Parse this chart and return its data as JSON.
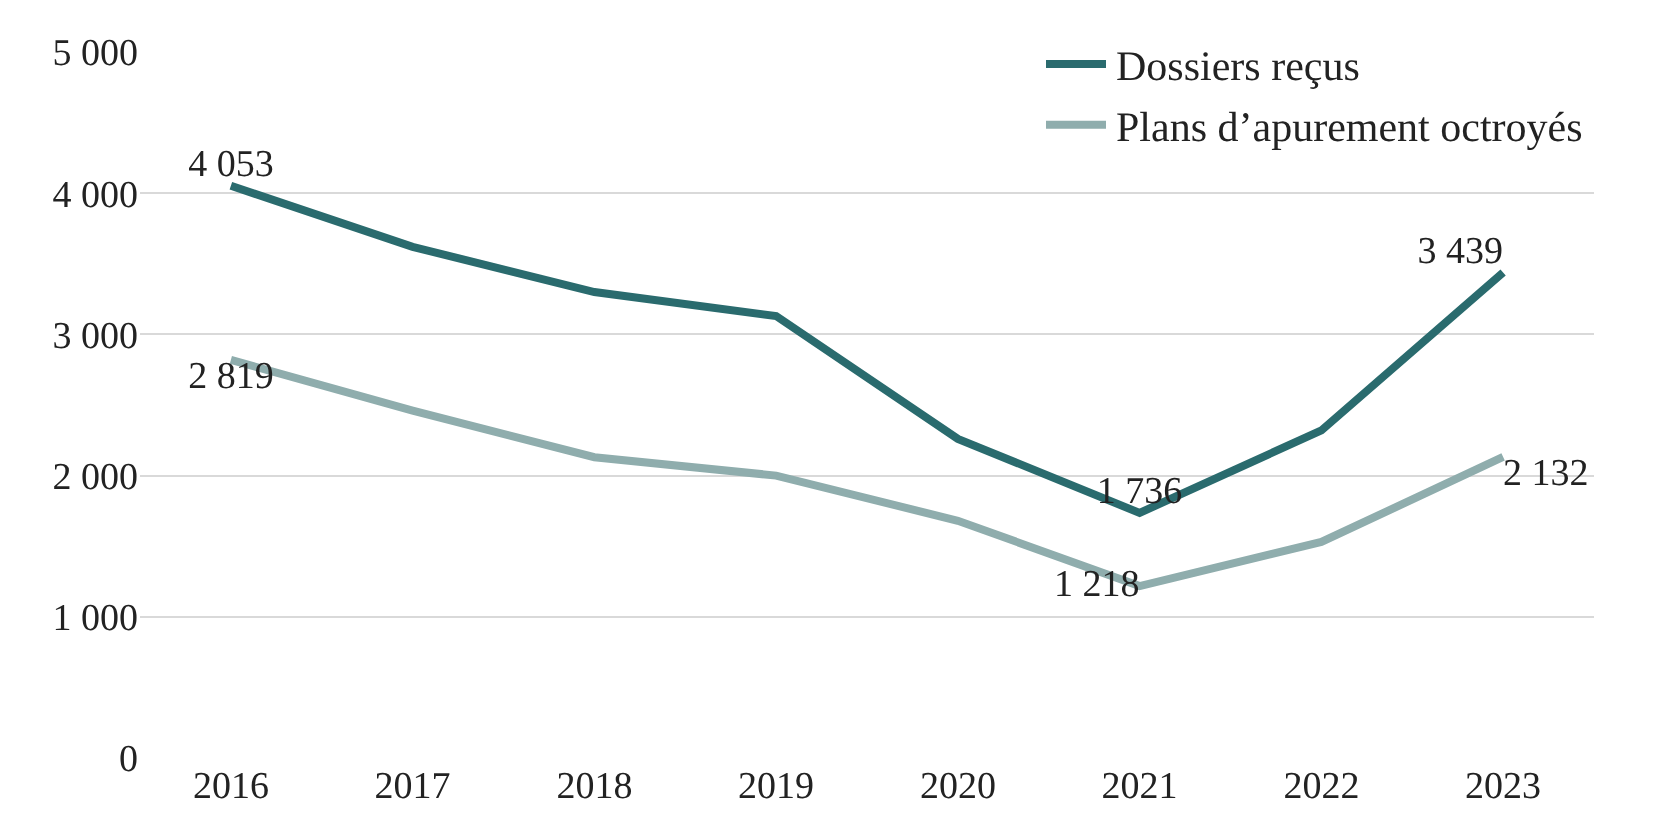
{
  "chart_data": {
    "type": "line",
    "categories": [
      "2016",
      "2017",
      "2018",
      "2019",
      "2020",
      "2021",
      "2022",
      "2023"
    ],
    "series": [
      {
        "name": "Dossiers reçus",
        "color": "#2a6b6e",
        "values": [
          4053,
          3620,
          3300,
          3130,
          2260,
          1736,
          2320,
          3439
        ],
        "value_labels": [
          "4 053",
          null,
          null,
          null,
          null,
          "1 736",
          null,
          "3 439"
        ]
      },
      {
        "name": "Plans d’apurement octroyés",
        "color": "#8fadad",
        "values": [
          2819,
          2460,
          2130,
          2000,
          1680,
          1218,
          1530,
          2132
        ],
        "value_labels": [
          "2 819",
          null,
          null,
          null,
          null,
          "1 218",
          null,
          "2 132"
        ]
      }
    ],
    "ylim": [
      0,
      5000
    ],
    "yticks": [
      {
        "value": 0,
        "label": "0"
      },
      {
        "value": 1000,
        "label": "1 000"
      },
      {
        "value": 2000,
        "label": "2 000"
      },
      {
        "value": 3000,
        "label": "3 000"
      },
      {
        "value": 4000,
        "label": "4 000"
      },
      {
        "value": 5000,
        "label": "5 000"
      }
    ],
    "grid": "y",
    "legend": "top right",
    "marker": "none",
    "line_style": "solid"
  }
}
